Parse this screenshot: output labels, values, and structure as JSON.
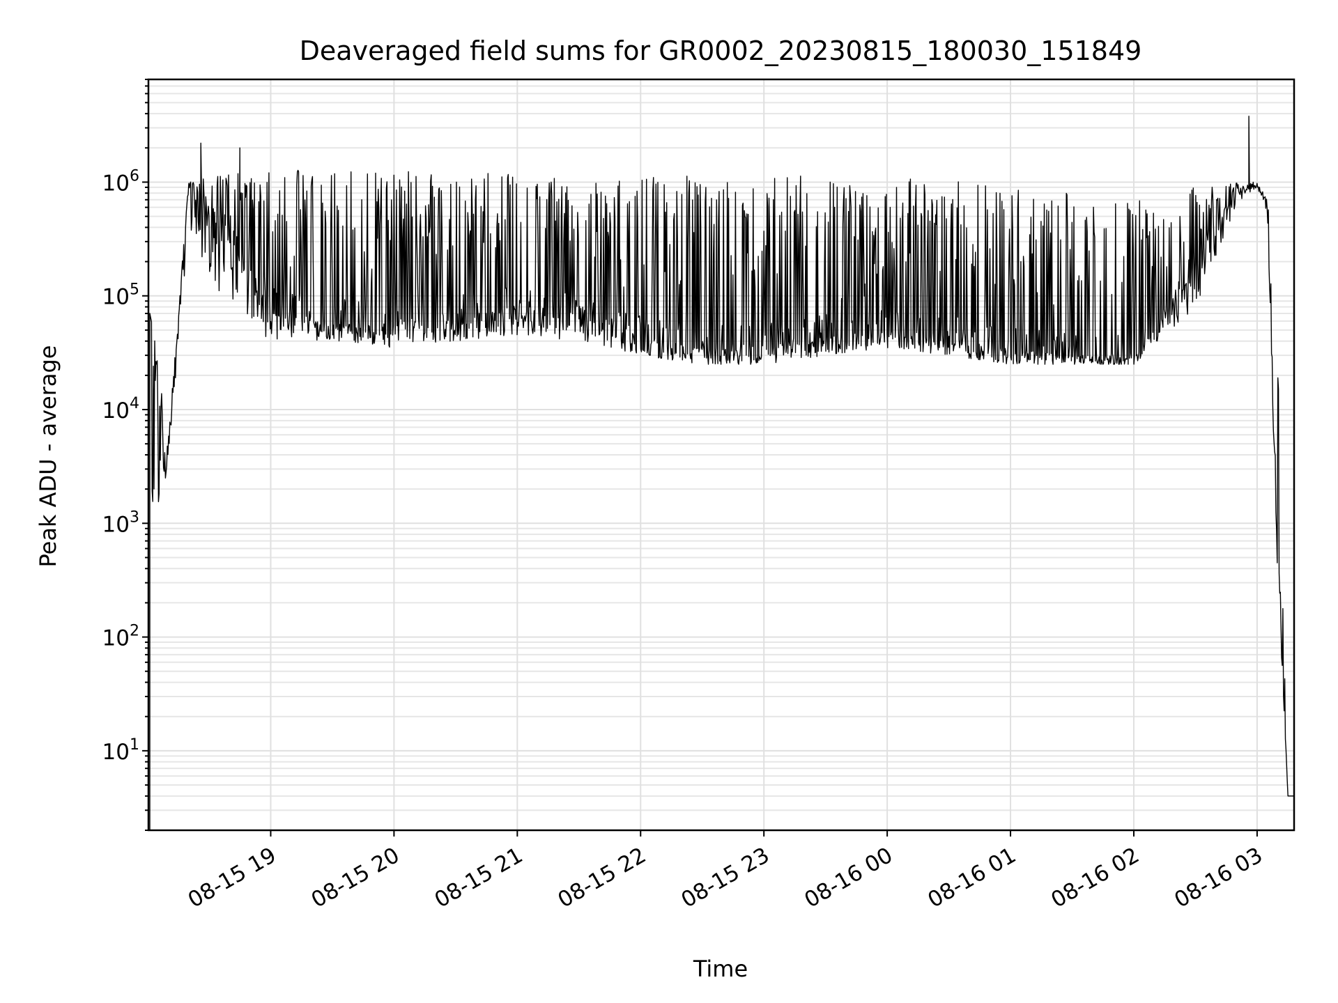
{
  "chart_data": {
    "type": "line",
    "title": "Deaveraged field sums for GR0002_20230815_180030_151849",
    "xlabel": "Time",
    "ylabel": "Peak ADU - average",
    "yscale": "log",
    "ylim": [
      2,
      8000000
    ],
    "xlim": [
      "2023-08-15 18:00:30",
      "2023-08-16 03:18:00"
    ],
    "grid": true,
    "legend": "none",
    "line_color": "#000000",
    "x_ticks": [
      {
        "value": "2023-08-15 19:00",
        "label": "08-15 19"
      },
      {
        "value": "2023-08-15 20:00",
        "label": "08-15 20"
      },
      {
        "value": "2023-08-15 21:00",
        "label": "08-15 21"
      },
      {
        "value": "2023-08-15 22:00",
        "label": "08-15 22"
      },
      {
        "value": "2023-08-15 23:00",
        "label": "08-15 23"
      },
      {
        "value": "2023-08-16 00:00",
        "label": "08-16 00"
      },
      {
        "value": "2023-08-16 01:00",
        "label": "08-16 01"
      },
      {
        "value": "2023-08-16 02:00",
        "label": "08-16 02"
      },
      {
        "value": "2023-08-16 03:00",
        "label": "08-16 03"
      }
    ],
    "y_ticks": [
      {
        "value": 10,
        "base": "10",
        "exp": "1"
      },
      {
        "value": 100,
        "base": "10",
        "exp": "2"
      },
      {
        "value": 1000,
        "base": "10",
        "exp": "3"
      },
      {
        "value": 10000,
        "base": "10",
        "exp": "4"
      },
      {
        "value": 100000,
        "base": "10",
        "exp": "5"
      },
      {
        "value": 1000000,
        "base": "10",
        "exp": "6"
      }
    ],
    "series": [
      {
        "envelope": {
          "x": [
            "2023-08-15 18:02",
            "2023-08-15 18:10",
            "2023-08-15 18:20",
            "2023-08-15 18:35",
            "2023-08-15 19:00",
            "2023-08-15 19:30",
            "2023-08-15 20:00",
            "2023-08-15 20:30",
            "2023-08-15 21:00",
            "2023-08-15 21:30",
            "2023-08-15 22:00",
            "2023-08-15 22:30",
            "2023-08-15 23:00",
            "2023-08-15 23:30",
            "2023-08-16 00:00",
            "2023-08-16 00:30",
            "2023-08-16 01:00",
            "2023-08-16 01:30",
            "2023-08-16 02:00",
            "2023-08-16 02:30",
            "2023-08-16 02:50",
            "2023-08-16 03:00",
            "2023-08-16 03:05",
            "2023-08-16 03:10",
            "2023-08-16 03:15"
          ],
          "high": [
            70000,
            5000,
            1000000,
            1200000,
            1300000,
            1300000,
            1300000,
            1250000,
            1200000,
            1100000,
            1100000,
            1150000,
            1200000,
            1150000,
            1100000,
            1050000,
            900000,
            800000,
            700000,
            900000,
            1000000,
            1000000,
            700000,
            100000,
            4
          ],
          "low": [
            700,
            3000,
            400000,
            100000,
            40000,
            40000,
            35000,
            40000,
            45000,
            40000,
            30000,
            25000,
            25000,
            30000,
            35000,
            30000,
            25000,
            25000,
            25000,
            80000,
            600000,
            900000,
            500000,
            300,
            4
          ],
          "baseline": [
            30000,
            4000,
            900000,
            500000,
            80000,
            60000,
            60000,
            70000,
            80000,
            70000,
            45000,
            35000,
            35000,
            45000,
            50000,
            45000,
            35000,
            30000,
            30000,
            200000,
            800000,
            950000,
            600000,
            700,
            4
          ]
        },
        "spikes": [
          {
            "x": "2023-08-15 18:26",
            "y": 2200000
          },
          {
            "x": "2023-08-15 18:45",
            "y": 2000000
          },
          {
            "x": "2023-08-16 02:56",
            "y": 3800000
          }
        ]
      }
    ]
  }
}
